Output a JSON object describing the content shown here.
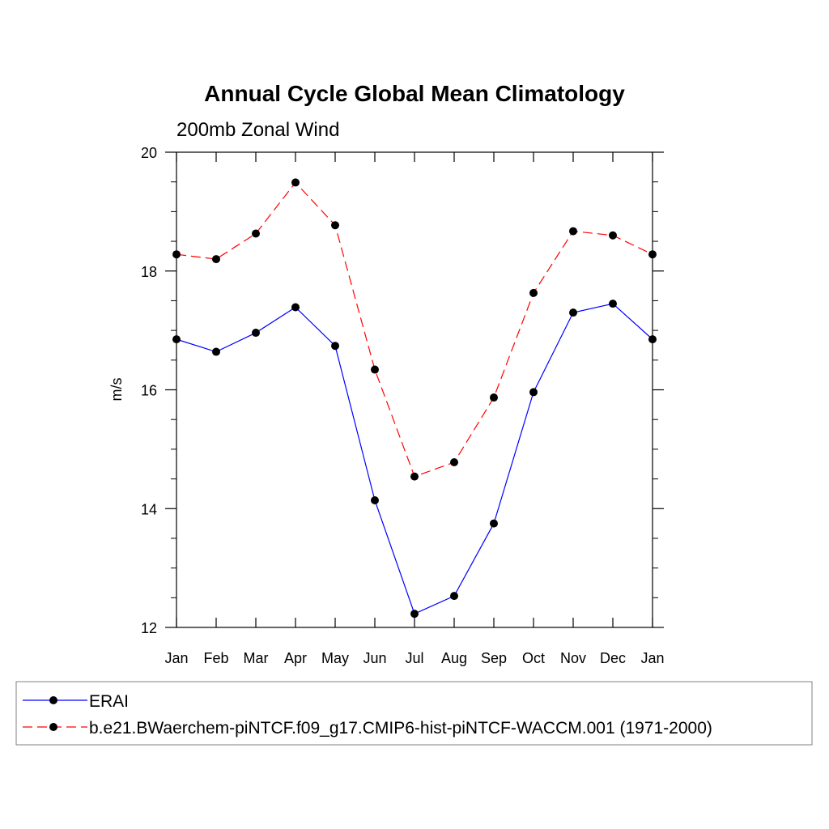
{
  "chart_data": {
    "type": "line",
    "title": "Annual Cycle Global Mean Climatology",
    "subtitle": "200mb Zonal Wind",
    "ylabel": "m/s",
    "xlabel": "",
    "categories": [
      "Jan",
      "Feb",
      "Mar",
      "Apr",
      "May",
      "Jun",
      "Jul",
      "Aug",
      "Sep",
      "Oct",
      "Nov",
      "Dec",
      "Jan"
    ],
    "ylim": [
      12,
      20
    ],
    "yticks": [
      12,
      14,
      16,
      18,
      20
    ],
    "series": [
      {
        "name": "ERAI",
        "color": "#0000ff",
        "dash": "solid",
        "values": [
          16.85,
          16.64,
          16.96,
          17.39,
          16.74,
          14.14,
          12.23,
          12.53,
          13.75,
          15.96,
          17.3,
          17.45,
          16.85
        ]
      },
      {
        "name": "b.e21.BWaerchem-piNTCF.f09_g17.CMIP6-hist-piNTCF-WACCM.001 (1971-2000)",
        "color": "#ff0000",
        "dash": "dashed",
        "values": [
          18.28,
          18.2,
          18.63,
          19.49,
          18.77,
          16.34,
          14.54,
          14.78,
          15.87,
          17.63,
          18.67,
          18.6,
          18.28
        ]
      }
    ],
    "marker": "filled-circle",
    "legend_position": "bottom"
  }
}
